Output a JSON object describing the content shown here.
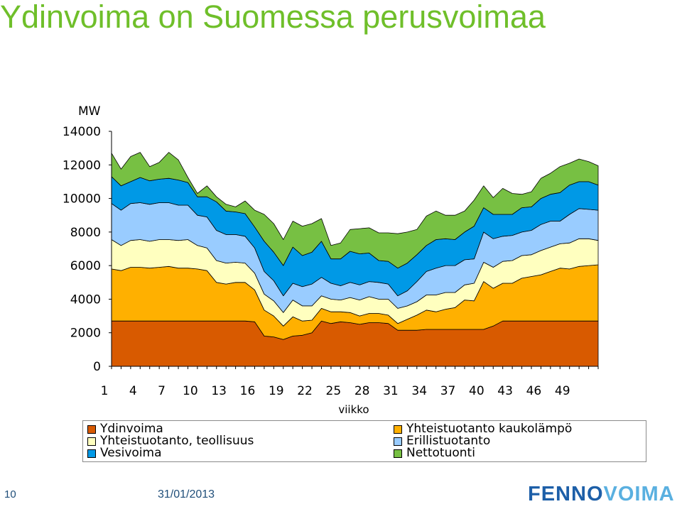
{
  "slide": {
    "title": "Ydinvoima on Suomessa perusvoimaa",
    "page_number": "10",
    "date": "31/01/2013",
    "logo_part1": "FENNO",
    "logo_part2": "VOIMA"
  },
  "chart_data": {
    "type": "area",
    "stacked": true,
    "title": "",
    "xlabel": "viikko",
    "ylabel": "MW",
    "ylim": [
      0,
      14000
    ],
    "yticks": [
      0,
      2000,
      4000,
      6000,
      8000,
      10000,
      12000,
      14000
    ],
    "xticks": [
      1,
      4,
      7,
      10,
      13,
      16,
      19,
      22,
      25,
      28,
      31,
      34,
      37,
      40,
      43,
      46,
      49
    ],
    "grid": false,
    "legend_position": "bottom",
    "x": [
      1,
      2,
      3,
      4,
      5,
      6,
      7,
      8,
      9,
      10,
      11,
      12,
      13,
      14,
      15,
      16,
      17,
      18,
      19,
      20,
      21,
      22,
      23,
      24,
      25,
      26,
      27,
      28,
      29,
      30,
      31,
      32,
      33,
      34,
      35,
      36,
      37,
      38,
      39,
      40,
      41,
      42,
      43,
      44,
      45,
      46,
      47,
      48,
      49,
      50,
      51,
      52
    ],
    "series": [
      {
        "name": "Ydinvoima",
        "color": "#d85a00",
        "values": [
          2700,
          2700,
          2700,
          2700,
          2700,
          2700,
          2700,
          2700,
          2700,
          2700,
          2700,
          2700,
          2700,
          2700,
          2700,
          2650,
          1800,
          1750,
          1600,
          1800,
          1850,
          2000,
          2700,
          2550,
          2650,
          2600,
          2500,
          2600,
          2600,
          2550,
          2150,
          2150,
          2150,
          2200,
          2200,
          2200,
          2200,
          2200,
          2200,
          2200,
          2400,
          2700,
          2700,
          2700,
          2700,
          2700,
          2700,
          2700,
          2700,
          2700,
          2700,
          2700
        ]
      },
      {
        "name": "Yhteistuotanto kaukolämpö",
        "color": "#ffb000",
        "values": [
          3100,
          3000,
          3200,
          3200,
          3150,
          3200,
          3250,
          3150,
          3150,
          3100,
          3000,
          2300,
          2200,
          2300,
          2300,
          1900,
          1550,
          1250,
          800,
          1150,
          850,
          750,
          750,
          700,
          600,
          600,
          500,
          550,
          550,
          500,
          400,
          650,
          900,
          1150,
          1050,
          1200,
          1300,
          1750,
          1700,
          2850,
          2250,
          2250,
          2250,
          2550,
          2650,
          2750,
          2950,
          3150,
          3100,
          3250,
          3300,
          3350
        ]
      },
      {
        "name": "Yhteistuotanto, teollisuus",
        "color": "#ffffbf",
        "values": [
          1750,
          1500,
          1600,
          1650,
          1600,
          1650,
          1600,
          1650,
          1700,
          1400,
          1350,
          1300,
          1250,
          1200,
          1150,
          1000,
          950,
          900,
          800,
          1000,
          900,
          850,
          750,
          750,
          700,
          900,
          950,
          1000,
          850,
          950,
          900,
          800,
          800,
          900,
          1000,
          1000,
          900,
          900,
          1050,
          1150,
          1250,
          1300,
          1350,
          1350,
          1300,
          1450,
          1450,
          1450,
          1550,
          1650,
          1600,
          1450
        ]
      },
      {
        "name": "Erillistuotanto",
        "color": "#99ccff",
        "values": [
          2150,
          2100,
          2200,
          2200,
          2200,
          2200,
          2200,
          2100,
          2050,
          1800,
          1850,
          1800,
          1700,
          1650,
          1600,
          1500,
          1350,
          1200,
          1000,
          1000,
          1150,
          1300,
          1100,
          950,
          850,
          900,
          900,
          900,
          1000,
          900,
          750,
          900,
          1200,
          1400,
          1600,
          1600,
          1600,
          1500,
          1450,
          1800,
          1700,
          1500,
          1500,
          1400,
          1450,
          1550,
          1550,
          1350,
          1700,
          1800,
          1750,
          1800
        ]
      },
      {
        "name": "Vesivoima",
        "color": "#0099e6",
        "values": [
          1600,
          1450,
          1300,
          1500,
          1400,
          1400,
          1450,
          1500,
          1350,
          1100,
          1200,
          1700,
          1400,
          1350,
          1350,
          1250,
          1800,
          1700,
          1800,
          2150,
          1850,
          1900,
          2150,
          1450,
          1600,
          1850,
          1850,
          1700,
          1300,
          1350,
          1650,
          1650,
          1600,
          1550,
          1700,
          1600,
          1550,
          1650,
          1950,
          1450,
          1450,
          1300,
          1250,
          1450,
          1400,
          1550,
          1600,
          1700,
          1750,
          1600,
          1650,
          1500
        ]
      },
      {
        "name": "Nettotuonti",
        "color": "#77c043",
        "values": [
          1400,
          1000,
          1500,
          1500,
          850,
          1000,
          1550,
          1200,
          300,
          200,
          650,
          300,
          400,
          300,
          750,
          1000,
          1600,
          1700,
          1550,
          1550,
          1750,
          1700,
          1350,
          800,
          950,
          1300,
          1500,
          1500,
          1650,
          1700,
          2050,
          1850,
          1500,
          1750,
          1700,
          1400,
          1450,
          1250,
          1550,
          1300,
          1000,
          1550,
          1250,
          800,
          900,
          1200,
          1250,
          1550,
          1300,
          1350,
          1200,
          1150
        ]
      }
    ]
  }
}
